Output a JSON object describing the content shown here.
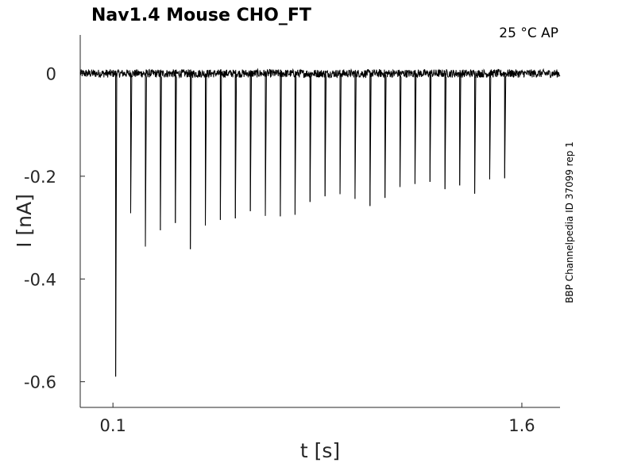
{
  "chart_data": {
    "type": "line",
    "title": "Nav1.4  Mouse  CHO_FT",
    "annotation": "25 °C  AP",
    "side_label": "BBP Channelpedia ID 37099 rep 1",
    "xlabel": "t [s]",
    "ylabel": "I [nA]",
    "xlim": [
      -0.02,
      1.74
    ],
    "ylim": [
      -0.65,
      0.075
    ],
    "x_ticks": [
      {
        "value": 0.1,
        "label": "0.1"
      },
      {
        "value": 1.6,
        "label": "1.6"
      }
    ],
    "y_ticks": [
      {
        "value": 0,
        "label": "0"
      },
      {
        "value": -0.2,
        "label": "-0.2"
      },
      {
        "value": -0.4,
        "label": "-0.4"
      },
      {
        "value": -0.6,
        "label": "-0.6"
      }
    ],
    "baseline": 0.0,
    "noise_amplitude": 0.008,
    "trace_end": 1.74,
    "spike_width": 0.004,
    "spikes": [
      {
        "t": 0.11,
        "i": -0.59
      },
      {
        "t": 0.165,
        "i": -0.272
      },
      {
        "t": 0.219,
        "i": -0.337
      },
      {
        "t": 0.274,
        "i": -0.305
      },
      {
        "t": 0.329,
        "i": -0.291
      },
      {
        "t": 0.384,
        "i": -0.342
      },
      {
        "t": 0.439,
        "i": -0.296
      },
      {
        "t": 0.494,
        "i": -0.285
      },
      {
        "t": 0.549,
        "i": -0.282
      },
      {
        "t": 0.604,
        "i": -0.268
      },
      {
        "t": 0.659,
        "i": -0.277
      },
      {
        "t": 0.714,
        "i": -0.278
      },
      {
        "t": 0.768,
        "i": -0.275
      },
      {
        "t": 0.823,
        "i": -0.25
      },
      {
        "t": 0.878,
        "i": -0.239
      },
      {
        "t": 0.933,
        "i": -0.235
      },
      {
        "t": 0.988,
        "i": -0.244
      },
      {
        "t": 1.043,
        "i": -0.258
      },
      {
        "t": 1.098,
        "i": -0.242
      },
      {
        "t": 1.153,
        "i": -0.221
      },
      {
        "t": 1.208,
        "i": -0.215
      },
      {
        "t": 1.263,
        "i": -0.211
      },
      {
        "t": 1.318,
        "i": -0.225
      },
      {
        "t": 1.372,
        "i": -0.218
      },
      {
        "t": 1.427,
        "i": -0.234
      },
      {
        "t": 1.482,
        "i": -0.206
      },
      {
        "t": 1.537,
        "i": -0.204
      }
    ],
    "grid": false,
    "legend": "none"
  }
}
